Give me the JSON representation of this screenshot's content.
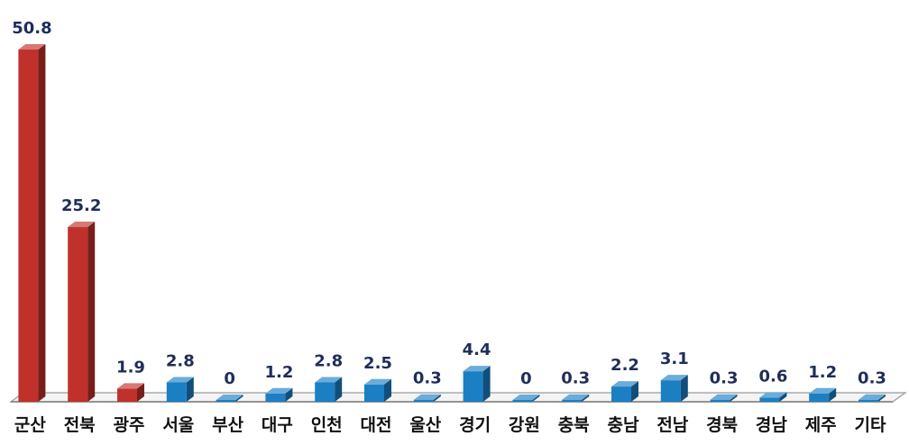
{
  "chart_data": {
    "type": "bar",
    "categories": [
      "군산",
      "전북",
      "광주",
      "서울",
      "부산",
      "대구",
      "인천",
      "대전",
      "울산",
      "경기",
      "강원",
      "충북",
      "충남",
      "전남",
      "경북",
      "경남",
      "제주",
      "기타"
    ],
    "values": [
      50.8,
      25.2,
      1.9,
      2.8,
      0,
      1.2,
      2.8,
      2.5,
      0.3,
      4.4,
      0,
      0.3,
      2.2,
      3.1,
      0.3,
      0.6,
      1.2,
      0.3
    ],
    "value_labels": [
      "50.8",
      "25.2",
      "1.9",
      "2.8",
      "0",
      "1.2",
      "2.8",
      "2.5",
      "0.3",
      "4.4",
      "0",
      "0.3",
      "2.2",
      "3.1",
      "0.3",
      "0.6",
      "1.2",
      "0.3"
    ],
    "bar_colors": [
      "#c0312b",
      "#c0312b",
      "#c0312b",
      "#1b7fc4",
      "#1b7fc4",
      "#1b7fc4",
      "#1b7fc4",
      "#1b7fc4",
      "#1b7fc4",
      "#1b7fc4",
      "#1b7fc4",
      "#1b7fc4",
      "#1b7fc4",
      "#1b7fc4",
      "#1b7fc4",
      "#1b7fc4",
      "#1b7fc4",
      "#1b7fc4"
    ],
    "title": "",
    "xlabel": "",
    "ylabel": "",
    "ylim": [
      0,
      50.8
    ],
    "grid": false,
    "legend": "none",
    "style": "3d-bar"
  }
}
